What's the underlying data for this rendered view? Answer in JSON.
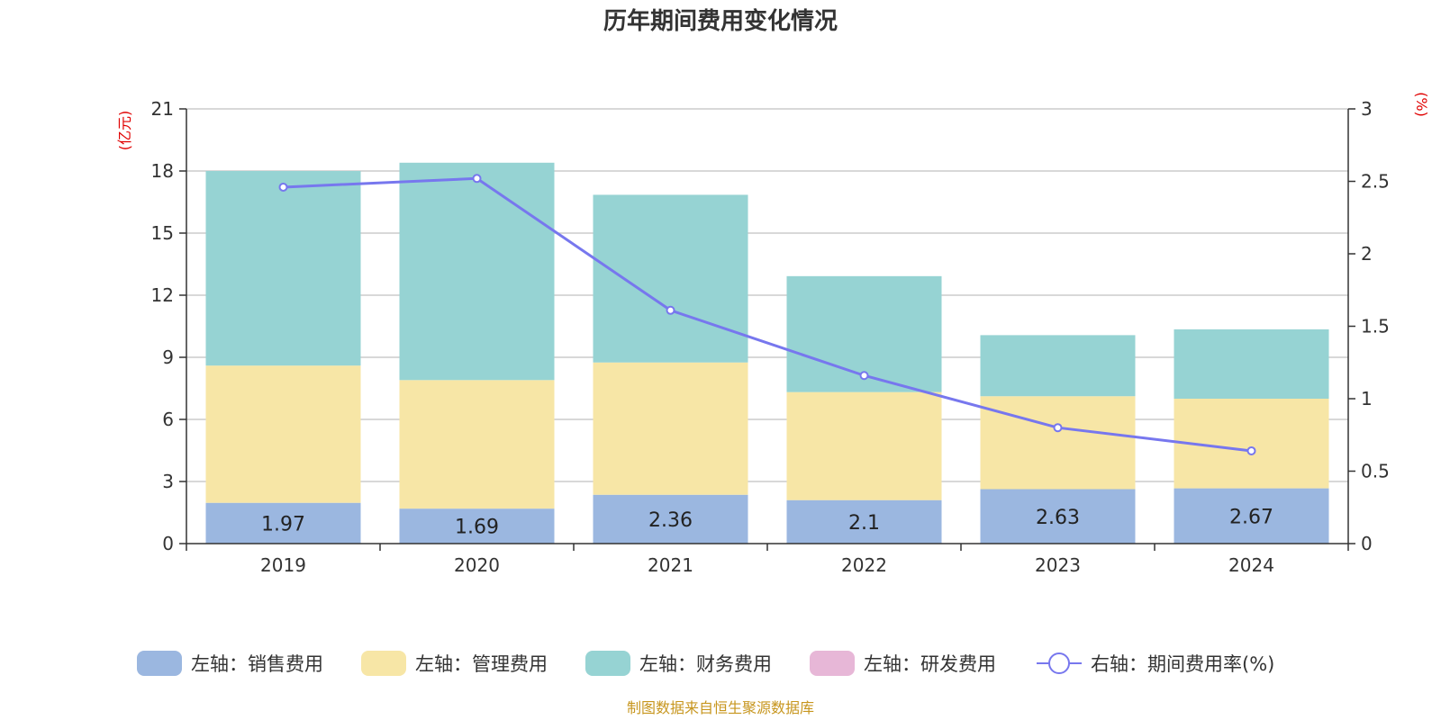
{
  "title": "历年期间费用变化情况",
  "units": {
    "left": "(亿元)",
    "right": "(%)"
  },
  "source": "制图数据来自恒生聚源数据库",
  "colors": {
    "sales": "#9bb7e0",
    "admin": "#f7e6a6",
    "finance": "#96d3d3",
    "rd": "#e7b7d7",
    "rate": "#7777ee",
    "unit_text": "#e00000",
    "source_text": "#c7961e",
    "grid": "#cccccc",
    "axis": "#333333"
  },
  "legend": [
    {
      "key": "sales",
      "label": "左轴：销售费用",
      "type": "bar"
    },
    {
      "key": "admin",
      "label": "左轴：管理费用",
      "type": "bar"
    },
    {
      "key": "finance",
      "label": "左轴：财务费用",
      "type": "bar"
    },
    {
      "key": "rd",
      "label": "左轴：研发费用",
      "type": "bar"
    },
    {
      "key": "rate",
      "label": "右轴：期间费用率(%)",
      "type": "line"
    }
  ],
  "chart_data": {
    "type": "bar",
    "stacked": true,
    "categories": [
      "2019",
      "2020",
      "2021",
      "2022",
      "2023",
      "2024"
    ],
    "series": [
      {
        "name": "左轴：销售费用",
        "key": "sales",
        "axis": "left",
        "values": [
          1.97,
          1.69,
          2.36,
          2.1,
          2.63,
          2.67
        ],
        "data_labels": [
          "1.97",
          "1.69",
          "2.36",
          "2.1",
          "2.63",
          "2.67"
        ]
      },
      {
        "name": "左轴：管理费用",
        "key": "admin",
        "axis": "left",
        "values": [
          6.63,
          6.21,
          6.39,
          5.22,
          4.49,
          4.33
        ]
      },
      {
        "name": "左轴：财务费用",
        "key": "finance",
        "axis": "left",
        "values": [
          9.4,
          10.5,
          8.1,
          5.6,
          2.95,
          3.35
        ]
      },
      {
        "name": "左轴：研发费用",
        "key": "rd",
        "axis": "left",
        "values": [
          0,
          0,
          0,
          0,
          0,
          0
        ]
      },
      {
        "name": "右轴：期间费用率(%)",
        "key": "rate",
        "axis": "right",
        "type": "line",
        "values": [
          2.46,
          2.52,
          1.61,
          1.16,
          0.8,
          0.64
        ]
      }
    ],
    "left_axis": {
      "min": 0,
      "max": 21,
      "ticks": [
        "0",
        "3",
        "6",
        "9",
        "12",
        "15",
        "18",
        "21"
      ]
    },
    "right_axis": {
      "min": 0,
      "max": 3,
      "ticks": [
        "0",
        "0.5",
        "1",
        "1.5",
        "2",
        "2.5",
        "3"
      ]
    },
    "grid": true,
    "legend_position": "bottom"
  }
}
